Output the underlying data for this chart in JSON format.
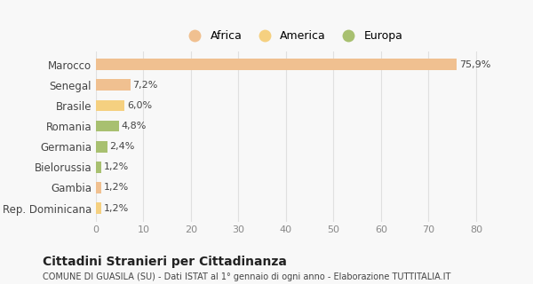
{
  "categories": [
    "Marocco",
    "Senegal",
    "Brasile",
    "Romania",
    "Germania",
    "Bielorussia",
    "Gambia",
    "Rep. Dominicana"
  ],
  "values": [
    75.9,
    7.2,
    6.0,
    4.8,
    2.4,
    1.2,
    1.2,
    1.2
  ],
  "labels": [
    "75,9%",
    "7,2%",
    "6,0%",
    "4,8%",
    "2,4%",
    "1,2%",
    "1,2%",
    "1,2%"
  ],
  "colors": [
    "#f0c090",
    "#f0c090",
    "#f5d080",
    "#a8c070",
    "#a8c070",
    "#a8c070",
    "#f0c090",
    "#f5d080"
  ],
  "legend": [
    {
      "label": "Africa",
      "color": "#f0c090"
    },
    {
      "label": "America",
      "color": "#f5d080"
    },
    {
      "label": "Europa",
      "color": "#a8c070"
    }
  ],
  "xlim": [
    0,
    83
  ],
  "xticks": [
    0,
    10,
    20,
    30,
    40,
    50,
    60,
    70,
    80
  ],
  "title": "Cittadini Stranieri per Cittadinanza",
  "subtitle": "COMUNE DI GUASILA (SU) - Dati ISTAT al 1° gennaio di ogni anno - Elaborazione TUTTITALIA.IT",
  "bg_color": "#f8f8f8",
  "grid_color": "#e0e0e0"
}
